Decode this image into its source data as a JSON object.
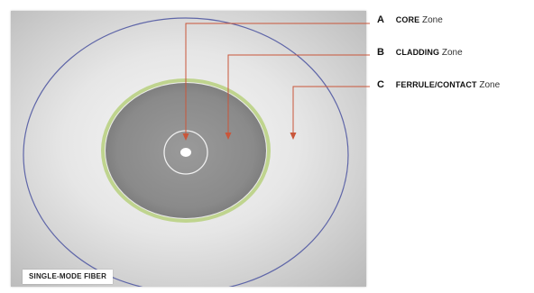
{
  "legend": [
    {
      "letter": "A",
      "zone": "CORE",
      "suffix": "Zone"
    },
    {
      "letter": "B",
      "zone": "CLADDING",
      "suffix": "Zone"
    },
    {
      "letter": "C",
      "zone": "FERRULE/CONTACT",
      "suffix": "Zone"
    }
  ],
  "fiber_label": "SINGLE-MODE FIBER",
  "colors": {
    "ferrule_ring": "#5f66a8",
    "cladding_edge": "#bfd48e",
    "cladding_fill": "#888888",
    "core_ring": "#f0f0f0",
    "core_dot": "#ffffff",
    "leader_line": "#c9563a"
  }
}
